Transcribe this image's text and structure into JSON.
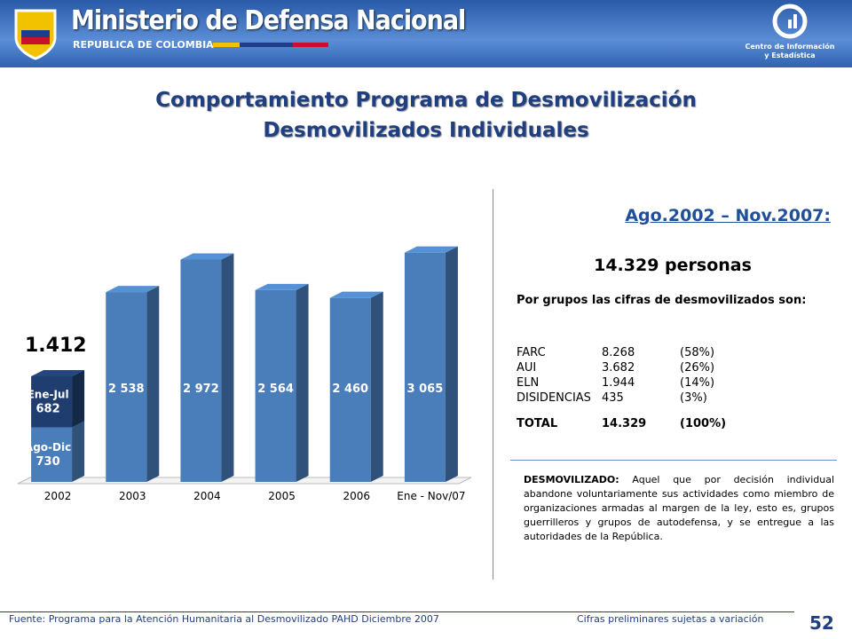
{
  "header": {
    "title": "Ministerio de Defensa Nacional",
    "subtitle": "REPUBLICA DE COLOMBIA",
    "center": [
      "Centro de Información",
      "y Estadística"
    ]
  },
  "slide_title": [
    "Comportamiento Programa de Desmovilización",
    "Desmovilizados Individuales"
  ],
  "chart_data": {
    "type": "bar",
    "categories": [
      "2002",
      "2003",
      "2004",
      "2005",
      "2006",
      "Ene - Nov/07"
    ],
    "series": [
      {
        "color": "#4a7ebb",
        "values": [
          null,
          2538,
          2972,
          2564,
          2460,
          3065
        ],
        "value_labels": [
          null,
          "2 538",
          "2 972",
          "2 564",
          "2 460",
          "3 065"
        ]
      },
      {
        "name": "Ago-Dic",
        "color": "#4a7ebb",
        "values": [
          730,
          null,
          null,
          null,
          null,
          null
        ]
      },
      {
        "name": "Ene-Jul",
        "color": "#1f3d6e",
        "values": [
          682,
          null,
          null,
          null,
          null,
          null
        ]
      }
    ],
    "annotation": "1.412",
    "ylim": [
      0,
      3500
    ]
  },
  "summary": {
    "period": "Ago.2002 – Nov.2007:",
    "total": "14.329 personas",
    "intro": "Por grupos las cifras de desmovilizados son:",
    "rows": [
      [
        "FARC",
        "8.268",
        "(58%)"
      ],
      [
        "AUI",
        "3.682",
        "(26%)"
      ],
      [
        "ELN",
        "1.944",
        "(14%)"
      ],
      [
        "DISIDENCIAS",
        "435",
        "(3%)"
      ]
    ],
    "total_row": [
      "TOTAL",
      "14.329",
      "(100%)"
    ],
    "definition_term": "DESMOVILIZADO:",
    "definition": "Aquel que por decisión individual abandone voluntariamente sus actividades como miembro de organizaciones armadas al margen de la ley, esto es, grupos guerrilleros y grupos de autodefensa, y se entregue a las autoridades de la República."
  },
  "footer": {
    "source": "Fuente: Programa para la Atención Humanitaria al Desmovilizado PAHD Diciembre 2007",
    "note": "Cifras preliminares sujetas a variación",
    "page": "52"
  }
}
